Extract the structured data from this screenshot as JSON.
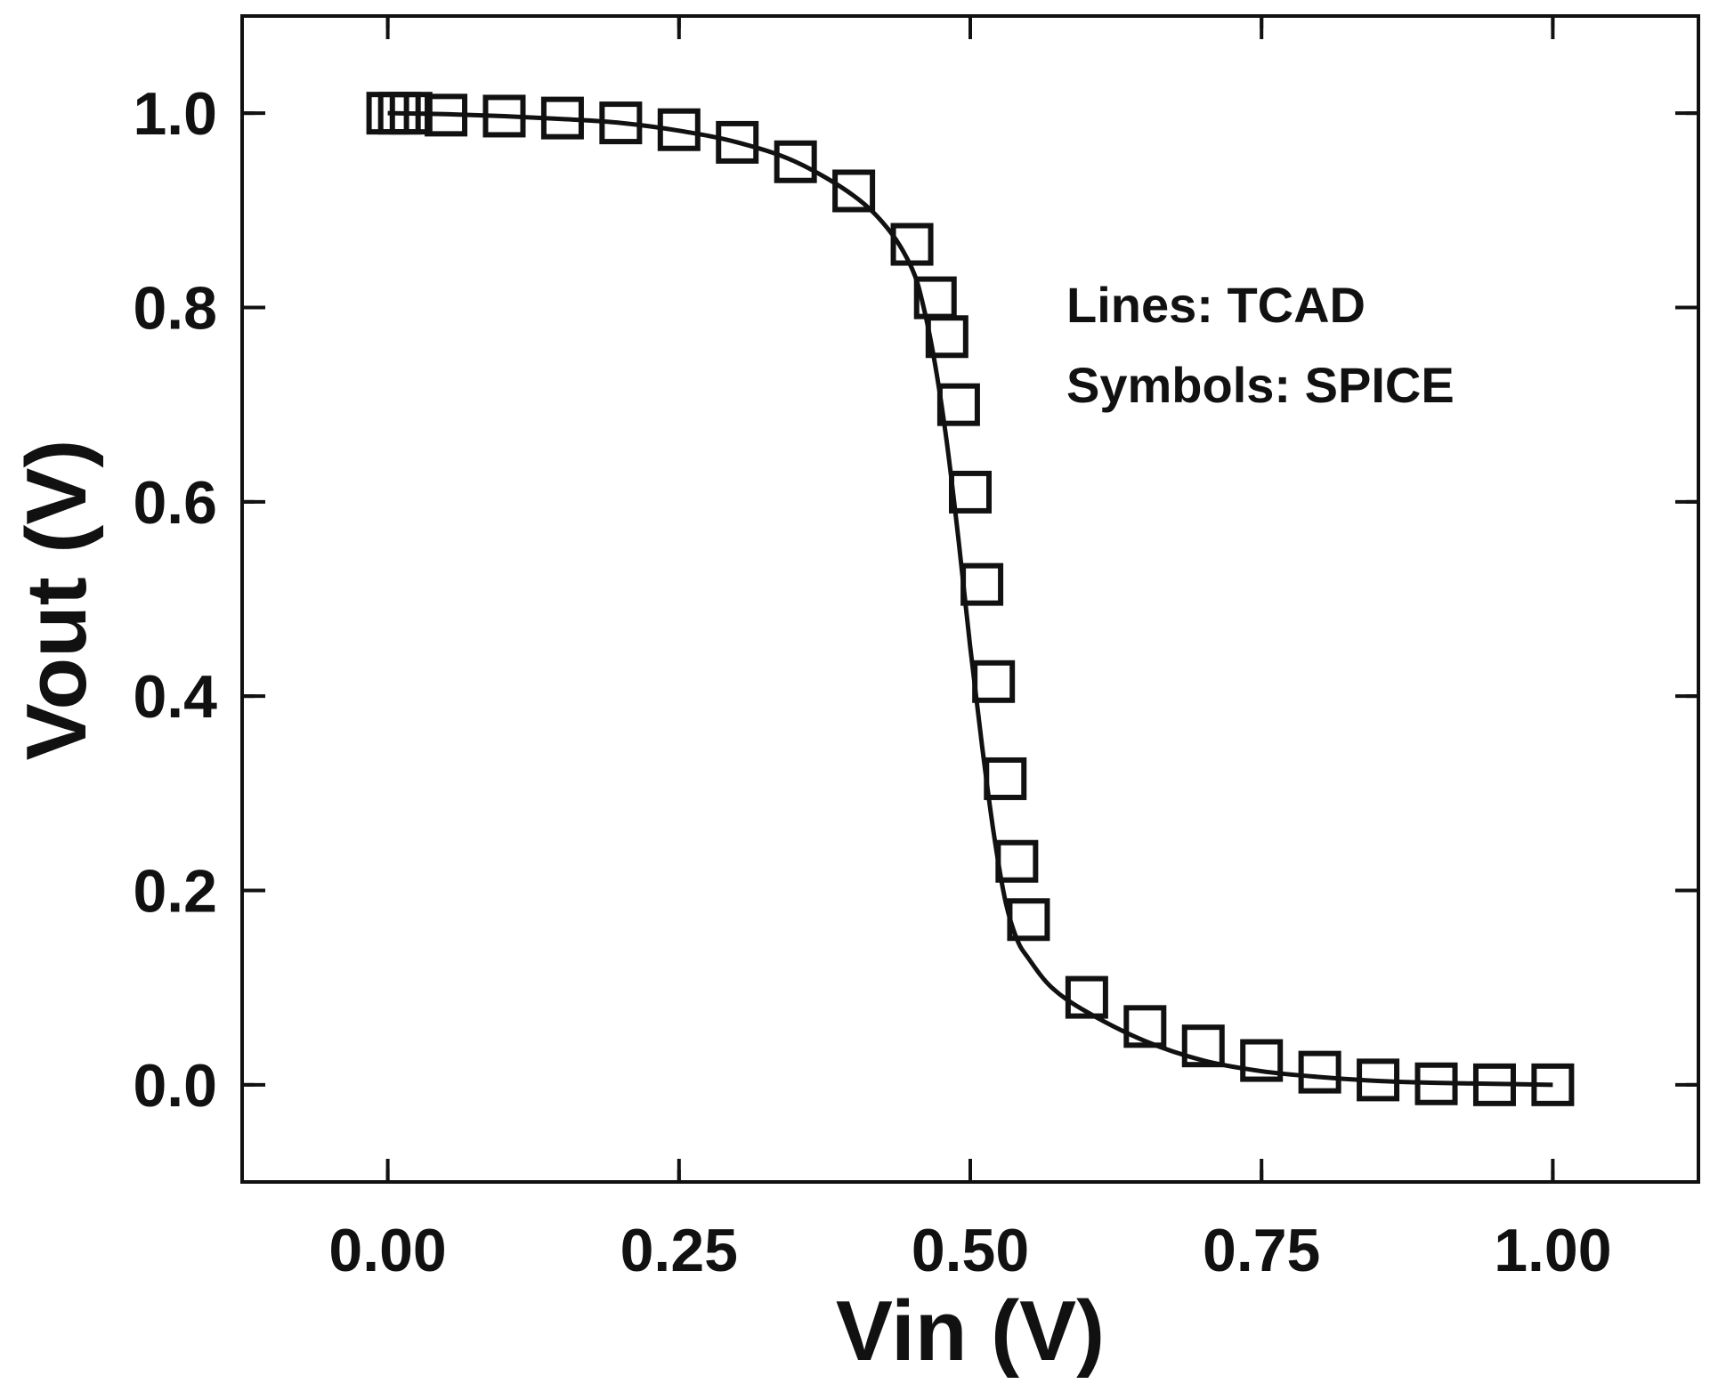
{
  "chart_data": {
    "type": "line",
    "title": "",
    "xlabel": "Vin (V)",
    "ylabel": "Vout (V)",
    "xlim": [
      -0.125,
      1.125
    ],
    "ylim": [
      -0.1,
      1.1
    ],
    "grid": false,
    "x_ticks": [
      0.0,
      0.25,
      0.5,
      0.75,
      1.0
    ],
    "x_tick_labels": [
      "0.00",
      "0.25",
      "0.50",
      "0.75",
      "1.00"
    ],
    "y_ticks": [
      0.0,
      0.2,
      0.4,
      0.6,
      0.8,
      1.0
    ],
    "y_tick_labels": [
      "0.0",
      "0.2",
      "0.4",
      "0.6",
      "0.8",
      "1.0"
    ],
    "annotations": [
      "Lines: TCAD",
      "Symbols: SPICE"
    ],
    "series": [
      {
        "name": "TCAD",
        "style": "line",
        "color": "#111111",
        "x": [
          0.0,
          0.05,
          0.1,
          0.15,
          0.2,
          0.25,
          0.3,
          0.35,
          0.4,
          0.43,
          0.45,
          0.46,
          0.47,
          0.48,
          0.49,
          0.5,
          0.51,
          0.52,
          0.53,
          0.54,
          0.55,
          0.57,
          0.6,
          0.65,
          0.7,
          0.75,
          0.8,
          0.85,
          0.9,
          0.95,
          1.0
        ],
        "y": [
          1.0,
          0.999,
          0.997,
          0.994,
          0.99,
          0.982,
          0.97,
          0.95,
          0.915,
          0.88,
          0.84,
          0.8,
          0.74,
          0.66,
          0.56,
          0.45,
          0.35,
          0.26,
          0.19,
          0.15,
          0.13,
          0.1,
          0.075,
          0.045,
          0.025,
          0.014,
          0.008,
          0.004,
          0.002,
          0.001,
          0.0
        ]
      },
      {
        "name": "SPICE",
        "style": "open-square",
        "color": "#111111",
        "x": [
          0.0,
          0.01,
          0.02,
          0.05,
          0.1,
          0.15,
          0.2,
          0.25,
          0.3,
          0.35,
          0.4,
          0.45,
          0.47,
          0.48,
          0.49,
          0.5,
          0.51,
          0.52,
          0.53,
          0.54,
          0.55,
          0.6,
          0.65,
          0.7,
          0.75,
          0.8,
          0.85,
          0.9,
          0.95,
          1.0
        ],
        "y": [
          1.0,
          1.0,
          1.0,
          0.998,
          0.997,
          0.995,
          0.99,
          0.983,
          0.97,
          0.95,
          0.92,
          0.865,
          0.81,
          0.77,
          0.7,
          0.61,
          0.515,
          0.415,
          0.315,
          0.23,
          0.17,
          0.09,
          0.06,
          0.04,
          0.025,
          0.013,
          0.005,
          0.001,
          0.0,
          0.0
        ]
      }
    ]
  }
}
